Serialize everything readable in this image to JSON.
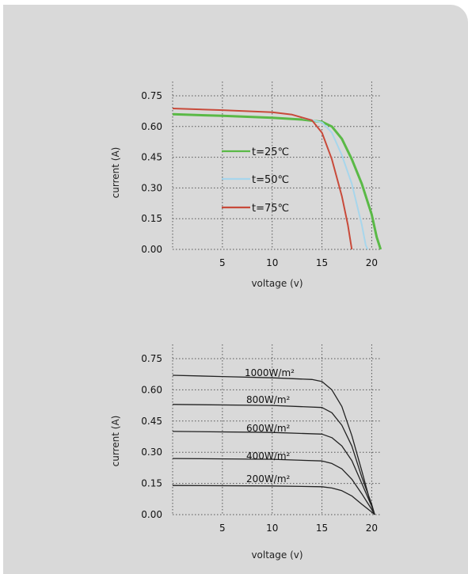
{
  "chart_data": [
    {
      "type": "line",
      "xlabel": "voltage (v)",
      "ylabel": "current (A)",
      "xlim": [
        0,
        21
      ],
      "ylim": [
        0,
        0.75
      ],
      "xticks": [
        "5",
        "10",
        "15",
        "20"
      ],
      "yticks": [
        "0.75",
        "0.60",
        "0.45",
        "0.30",
        "0.15",
        "0.00"
      ],
      "grid": true,
      "legend_position": "center-left",
      "series": [
        {
          "name": "t=25℃",
          "color": "#5ab946",
          "points": [
            [
              0,
              0.66
            ],
            [
              5,
              0.652
            ],
            [
              10,
              0.643
            ],
            [
              13,
              0.634
            ],
            [
              15,
              0.623
            ],
            [
              16,
              0.6
            ],
            [
              17,
              0.54
            ],
            [
              18,
              0.44
            ],
            [
              19,
              0.32
            ],
            [
              20,
              0.17
            ],
            [
              20.5,
              0.06
            ],
            [
              20.9,
              0
            ]
          ]
        },
        {
          "name": "t=50℃",
          "color": "#a7d6ec",
          "points": [
            [
              13,
              0.642
            ],
            [
              15,
              0.62
            ],
            [
              16,
              0.57
            ],
            [
              17,
              0.46
            ],
            [
              18,
              0.32
            ],
            [
              19,
              0.12
            ],
            [
              19.4,
              0.02
            ],
            [
              19.6,
              0
            ]
          ]
        },
        {
          "name": "t=75℃",
          "color": "#c84a3a",
          "points": [
            [
              0,
              0.688
            ],
            [
              5,
              0.68
            ],
            [
              10,
              0.67
            ],
            [
              12,
              0.658
            ],
            [
              14,
              0.63
            ],
            [
              15,
              0.57
            ],
            [
              16,
              0.44
            ],
            [
              17,
              0.26
            ],
            [
              17.6,
              0.12
            ],
            [
              17.9,
              0.03
            ],
            [
              18,
              0
            ]
          ]
        }
      ]
    },
    {
      "type": "line",
      "xlabel": "voltage (v)",
      "ylabel": "current (A)",
      "xlim": [
        0,
        21
      ],
      "ylim": [
        0,
        0.75
      ],
      "xticks": [
        "5",
        "10",
        "15",
        "20"
      ],
      "yticks": [
        "0.75",
        "0.60",
        "0.45",
        "0.30",
        "0.15",
        "0.00"
      ],
      "grid": true,
      "series": [
        {
          "name": "1000W/m²",
          "color": "#222222",
          "points": [
            [
              0,
              0.67
            ],
            [
              5,
              0.664
            ],
            [
              10,
              0.658
            ],
            [
              14,
              0.65
            ],
            [
              15,
              0.64
            ],
            [
              16,
              0.6
            ],
            [
              17,
              0.52
            ],
            [
              18,
              0.38
            ],
            [
              19,
              0.21
            ],
            [
              19.8,
              0.07
            ],
            [
              20.3,
              0
            ]
          ]
        },
        {
          "name": "800W/m²",
          "color": "#222222",
          "points": [
            [
              0,
              0.53
            ],
            [
              10,
              0.525
            ],
            [
              15,
              0.515
            ],
            [
              16,
              0.49
            ],
            [
              17,
              0.43
            ],
            [
              18,
              0.33
            ],
            [
              19,
              0.18
            ],
            [
              20,
              0.05
            ],
            [
              20.3,
              0
            ]
          ]
        },
        {
          "name": "600W/m²",
          "color": "#222222",
          "points": [
            [
              0,
              0.4
            ],
            [
              10,
              0.395
            ],
            [
              15,
              0.387
            ],
            [
              16,
              0.37
            ],
            [
              17,
              0.33
            ],
            [
              18,
              0.26
            ],
            [
              19,
              0.15
            ],
            [
              20,
              0.04
            ],
            [
              20.3,
              0
            ]
          ]
        },
        {
          "name": "400W/m²",
          "color": "#222222",
          "points": [
            [
              0,
              0.27
            ],
            [
              10,
              0.266
            ],
            [
              15,
              0.258
            ],
            [
              16,
              0.246
            ],
            [
              17,
              0.22
            ],
            [
              18,
              0.17
            ],
            [
              19,
              0.1
            ],
            [
              20,
              0.025
            ],
            [
              20.3,
              0
            ]
          ]
        },
        {
          "name": "200W/m²",
          "color": "#222222",
          "points": [
            [
              0,
              0.14
            ],
            [
              10,
              0.138
            ],
            [
              15,
              0.134
            ],
            [
              16,
              0.128
            ],
            [
              17,
              0.115
            ],
            [
              18,
              0.09
            ],
            [
              19,
              0.05
            ],
            [
              20,
              0.012
            ],
            [
              20.3,
              0
            ]
          ]
        }
      ]
    }
  ]
}
